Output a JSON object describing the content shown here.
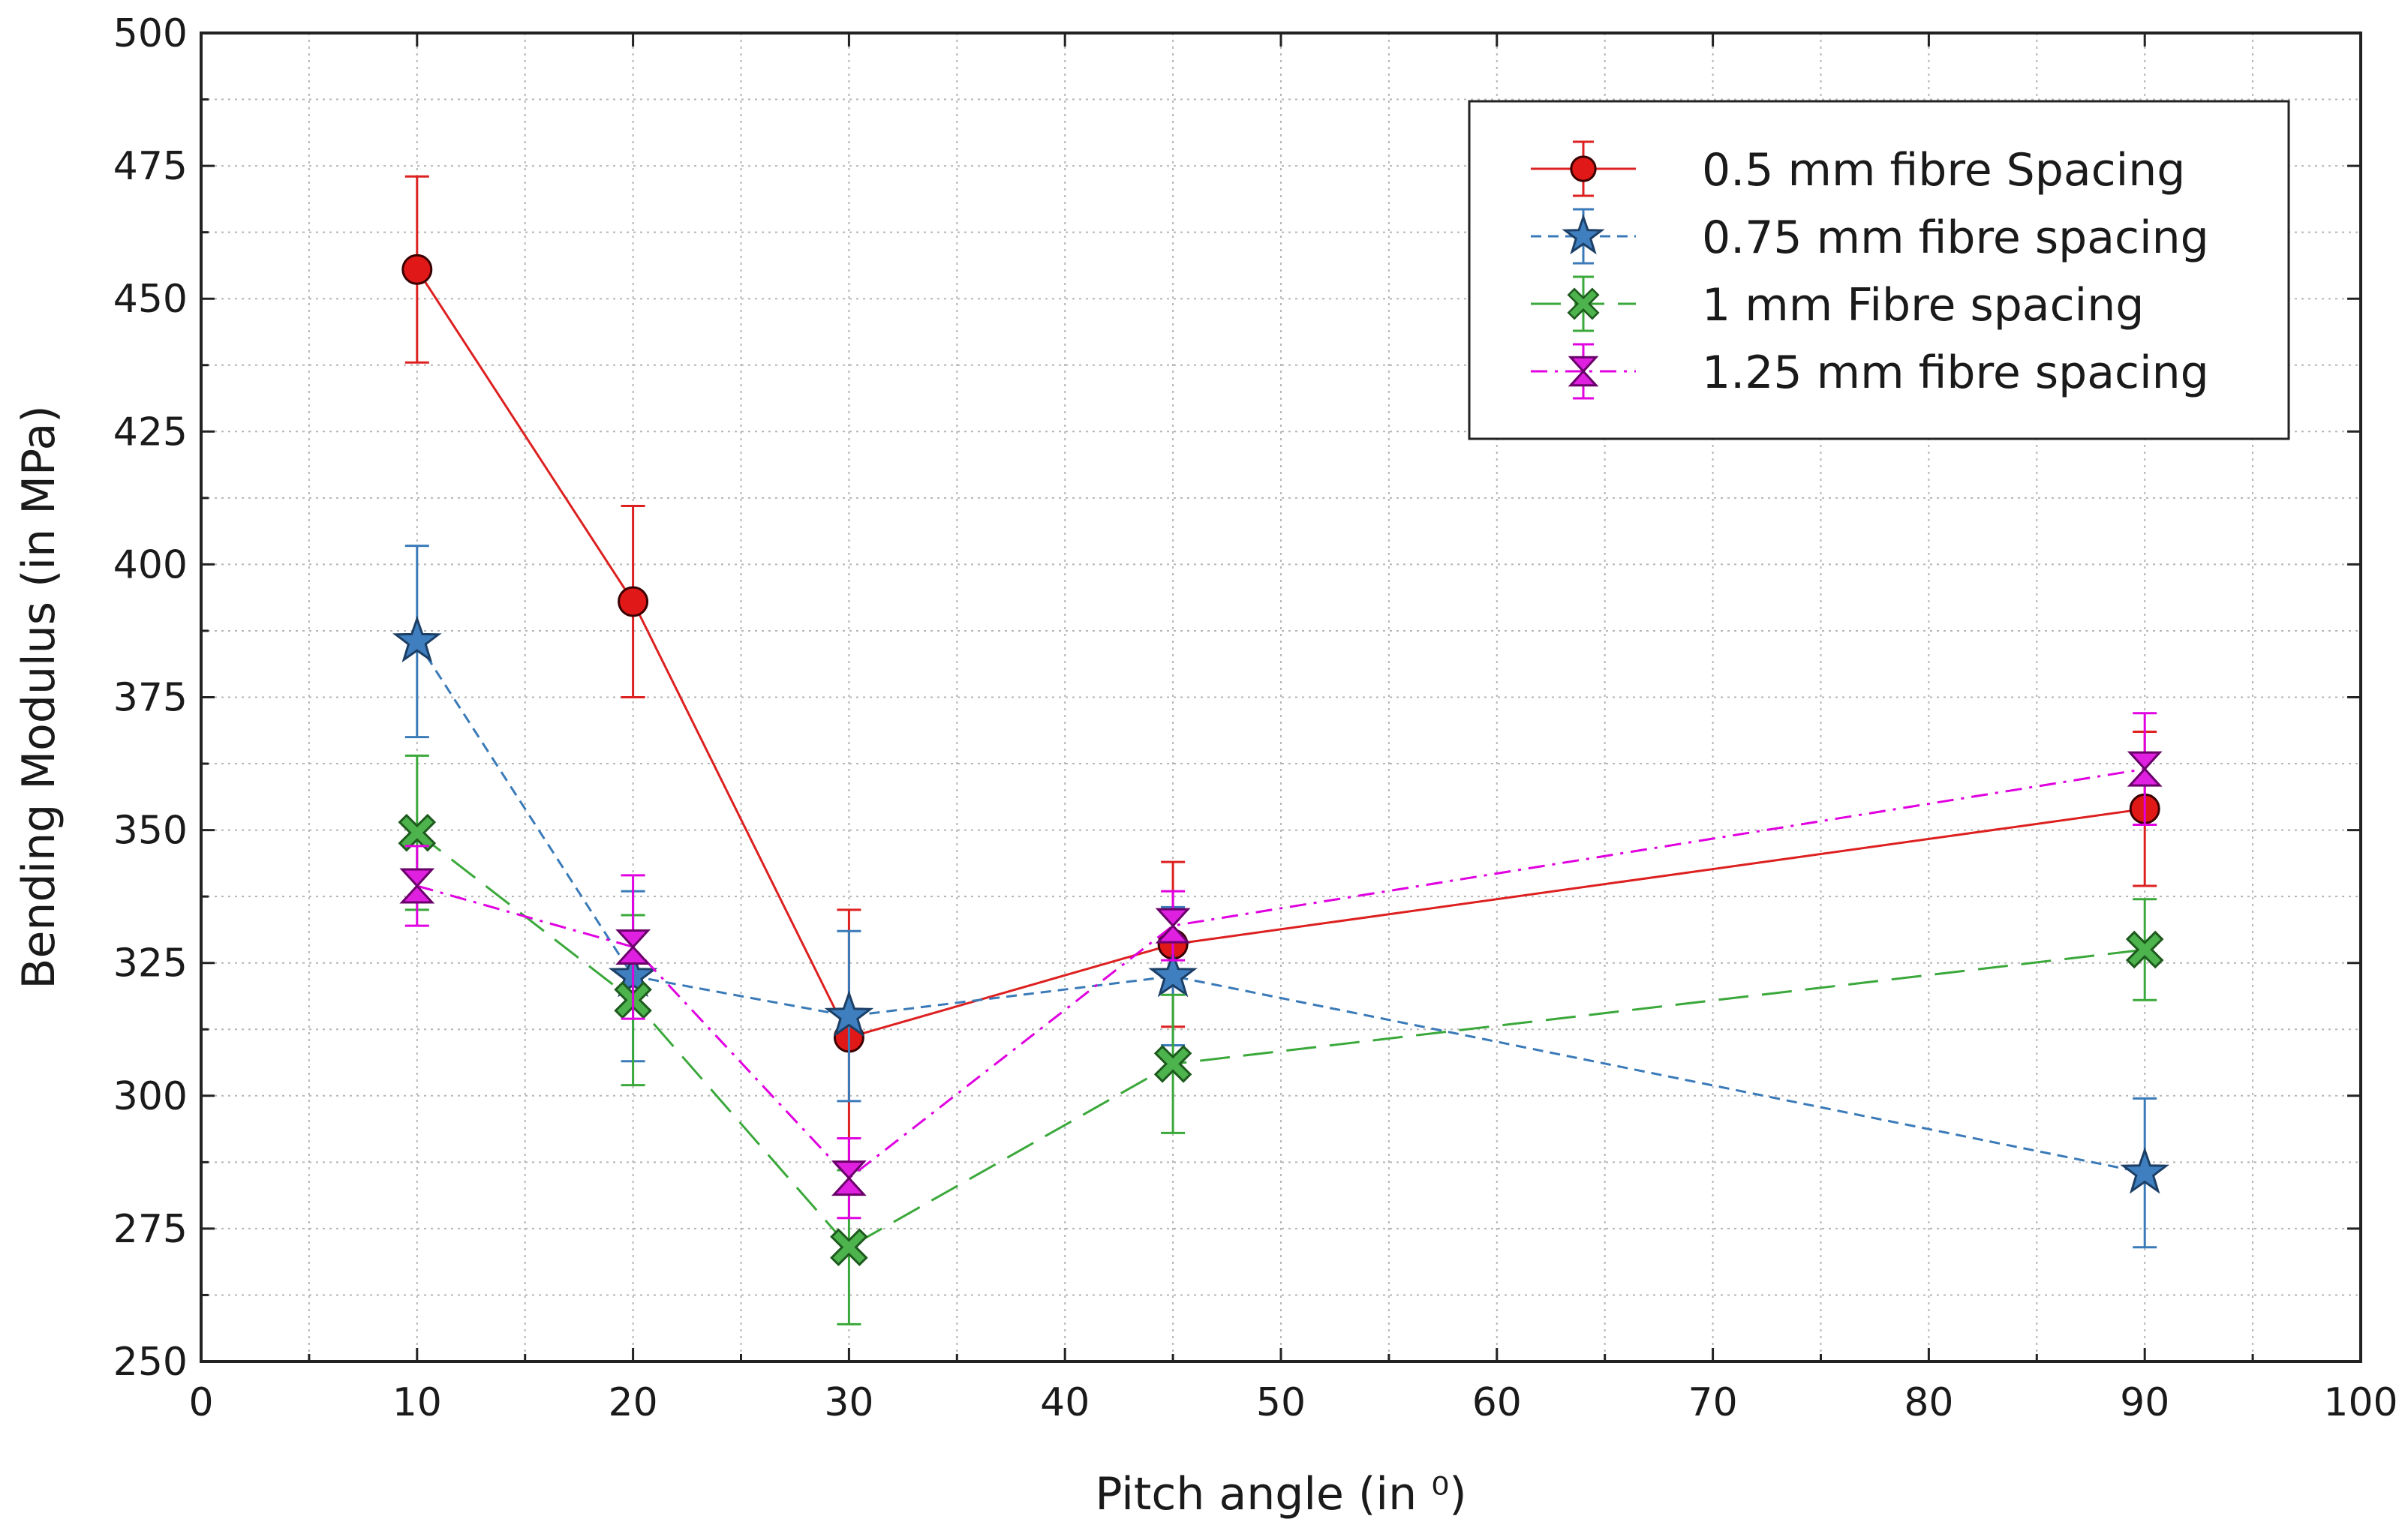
{
  "chart_data": {
    "type": "line",
    "title": "",
    "xlabel": "Pitch angle (in ⁰)",
    "ylabel": "Bending Modulus (in MPa)",
    "xlim": [
      0,
      100
    ],
    "ylim": [
      250,
      500
    ],
    "xticks": [
      0,
      10,
      20,
      30,
      40,
      50,
      60,
      70,
      80,
      90,
      100
    ],
    "yticks": [
      250,
      275,
      300,
      325,
      350,
      375,
      400,
      425,
      450,
      475,
      500
    ],
    "grid": true,
    "legend_position": "top-right",
    "x": [
      10,
      20,
      30,
      45,
      90
    ],
    "series": [
      {
        "name": "0.5 mm fibre Spacing",
        "color": "#dd2020",
        "marker": "circle",
        "line_style": "solid",
        "values": [
          455.5,
          393,
          311,
          328.5,
          354
        ],
        "errors": [
          17.5,
          18,
          24,
          15.5,
          14.5
        ]
      },
      {
        "name": "0.75 mm fibre spacing",
        "color": "#3a7ab8",
        "marker": "star",
        "line_style": "dashed",
        "values": [
          385.5,
          322.5,
          315,
          322.5,
          285.5
        ],
        "errors": [
          18,
          16,
          16,
          13,
          14
        ]
      },
      {
        "name": "1 mm Fibre spacing",
        "color": "#3aa83a",
        "marker": "x-filled",
        "line_style": "long-dashed",
        "values": [
          349.5,
          318,
          271.5,
          306,
          327.5
        ],
        "errors": [
          14.5,
          16,
          14.5,
          13,
          9.5
        ]
      },
      {
        "name": "1.25 mm fibre spacing",
        "color": "#e000e0",
        "marker": "hourglass",
        "line_style": "dash-dot",
        "values": [
          339.5,
          328,
          284.5,
          332,
          361.5
        ],
        "errors": [
          7.5,
          13.5,
          7.5,
          6.5,
          10.5
        ]
      }
    ]
  }
}
